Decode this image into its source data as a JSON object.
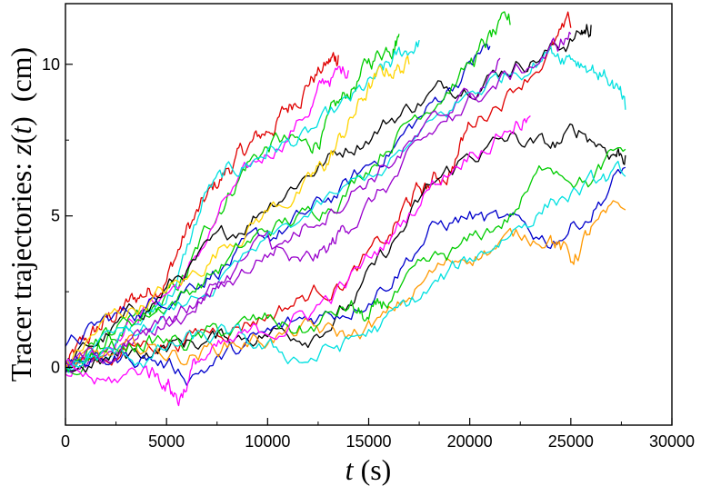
{
  "chart_data": {
    "type": "line",
    "title": "",
    "xlabel": {
      "var": "t",
      "unit": " (s)"
    },
    "ylabel": {
      "prefix": "Tracer trajectories: ",
      "var": "z",
      "paren_open": "(",
      "arg": "t",
      "paren_close": ")",
      "unit": "  (cm)"
    },
    "xlim": [
      0,
      30000
    ],
    "ylim": [
      -1.9,
      12
    ],
    "xticks": [
      0,
      5000,
      10000,
      15000,
      20000,
      25000,
      30000
    ],
    "xtick_labels": [
      "0",
      "5000",
      "10000",
      "15000",
      "20000",
      "25000",
      "30000"
    ],
    "yticks": [
      0,
      5,
      10
    ],
    "ytick_labels": [
      "0",
      "5",
      "10"
    ],
    "grid": false,
    "legend": "none",
    "note": "approximate",
    "series": [
      {
        "color": "#e00000",
        "x": [
          0,
          1000,
          2000,
          3000,
          4000,
          5000,
          6000,
          7000,
          8000,
          9000,
          10000,
          11000,
          12000,
          13000,
          13500
        ],
        "y": [
          0,
          0.8,
          1.5,
          2.0,
          2.5,
          3.0,
          4.5,
          5.5,
          6.5,
          7.2,
          7.8,
          8.5,
          9.5,
          10.0,
          10.3
        ]
      },
      {
        "color": "#00cc00",
        "x": [
          0,
          1500,
          3000,
          4500,
          6000,
          7500,
          9000,
          10500,
          12000,
          13000,
          14000,
          15000,
          16000,
          16500
        ],
        "y": [
          0,
          0.6,
          1.2,
          1.8,
          3.0,
          5.2,
          6.8,
          7.5,
          7.2,
          8.0,
          9.0,
          10.0,
          10.7,
          11.0
        ]
      },
      {
        "color": "#ff00ff",
        "x": [
          0,
          2000,
          4000,
          6000,
          8000,
          10000,
          12000,
          13000,
          14000
        ],
        "y": [
          0,
          0.9,
          2.0,
          3.0,
          5.5,
          7.0,
          8.5,
          9.5,
          9.8
        ]
      },
      {
        "color": "#00e0e0",
        "x": [
          0,
          2000,
          4000,
          5500,
          7000,
          8500,
          10000,
          12000,
          14000,
          15500,
          16500,
          17500
        ],
        "y": [
          0,
          0.8,
          1.6,
          2.8,
          5.8,
          6.5,
          7.2,
          7.6,
          8.6,
          9.5,
          10.2,
          10.8
        ]
      },
      {
        "color": "#000000",
        "x": [
          0,
          2000,
          4000,
          6000,
          8000,
          10000,
          12000,
          14000,
          16000,
          18000,
          20000,
          22000,
          24000,
          25500,
          26000
        ],
        "y": [
          0,
          1.0,
          2.0,
          3.2,
          4.2,
          5.5,
          6.5,
          7.3,
          8.2,
          9.0,
          9.5,
          10.0,
          10.5,
          11.0,
          11.3
        ]
      },
      {
        "color": "#0000cc",
        "x": [
          0,
          2000,
          4000,
          6000,
          8000,
          10000,
          12000,
          14000,
          16000,
          18000,
          20000,
          21000
        ],
        "y": [
          0.5,
          1.5,
          2.0,
          2.8,
          3.5,
          4.2,
          5.0,
          6.0,
          7.2,
          8.5,
          10.0,
          10.6
        ]
      },
      {
        "color": "#ffd400",
        "x": [
          0,
          2000,
          4000,
          6000,
          8000,
          10000,
          12000,
          13000,
          14000,
          15000,
          16000,
          17000
        ],
        "y": [
          0,
          1.5,
          2.2,
          2.8,
          4.2,
          5.2,
          6.0,
          6.8,
          8.0,
          9.2,
          9.8,
          10.0
        ]
      },
      {
        "color": "#00cc00",
        "x": [
          0,
          2000,
          4000,
          6000,
          8000,
          10000,
          12000,
          14000,
          16000,
          18000,
          20000,
          21000,
          22000
        ],
        "y": [
          0,
          1.2,
          1.8,
          2.5,
          3.5,
          4.5,
          5.0,
          6.0,
          7.5,
          8.8,
          10.0,
          10.8,
          11.3
        ]
      },
      {
        "color": "#9900cc",
        "x": [
          0,
          2000,
          4000,
          6000,
          8000,
          10000,
          11500,
          13000,
          14000,
          16000,
          18000,
          20000,
          21500
        ],
        "y": [
          0,
          0.6,
          1.2,
          1.8,
          3.0,
          4.2,
          3.2,
          3.8,
          4.8,
          6.0,
          7.5,
          9.0,
          10.2
        ]
      },
      {
        "color": "#e00000",
        "x": [
          0,
          2000,
          4000,
          6000,
          8000,
          10000,
          12000,
          14000,
          16000,
          17000,
          18000,
          19000,
          20000,
          22000,
          24000,
          25000
        ],
        "y": [
          0,
          0.4,
          0.8,
          1.0,
          1.4,
          1.8,
          2.4,
          3.0,
          4.2,
          5.5,
          6.0,
          6.5,
          8.0,
          9.2,
          10.5,
          11.2
        ]
      },
      {
        "color": "#000000",
        "x": [
          0,
          2000,
          4000,
          6000,
          8000,
          10000,
          12000,
          14000,
          16000,
          18000,
          20000,
          22000,
          24000,
          25500,
          27000,
          27700
        ],
        "y": [
          0,
          0.2,
          0.6,
          0.8,
          1.0,
          1.2,
          1.2,
          2.0,
          3.8,
          5.8,
          7.0,
          7.5,
          7.2,
          7.8,
          7.2,
          7.0
        ]
      },
      {
        "color": "#0000cc",
        "x": [
          0,
          2000,
          4000,
          6000,
          8000,
          10000,
          12000,
          14000,
          16000,
          18000,
          20000,
          22000,
          24000,
          26000,
          27700
        ],
        "y": [
          0,
          0.2,
          0.4,
          -0.2,
          0.4,
          1.0,
          1.6,
          2.0,
          3.0,
          4.5,
          5.0,
          4.6,
          4.2,
          5.2,
          6.6
        ]
      },
      {
        "color": "#ff9900",
        "x": [
          0,
          2000,
          4000,
          6000,
          8000,
          10000,
          12000,
          14000,
          16000,
          18000,
          20000,
          22000,
          24000,
          25000,
          26000,
          27700
        ],
        "y": [
          0,
          0.3,
          0.6,
          0.4,
          0.8,
          1.0,
          1.2,
          1.0,
          1.6,
          3.0,
          3.8,
          4.2,
          4.5,
          3.5,
          4.5,
          5.2
        ]
      },
      {
        "color": "#00cc00",
        "x": [
          0,
          2000,
          4000,
          6000,
          8000,
          10000,
          12000,
          14000,
          15000,
          16000,
          18000,
          20000,
          22000,
          24000,
          26000,
          27700
        ],
        "y": [
          0,
          0.5,
          0.9,
          0.8,
          1.2,
          1.5,
          1.2,
          2.0,
          1.5,
          2.2,
          3.2,
          4.0,
          5.0,
          6.8,
          6.2,
          7.2
        ]
      },
      {
        "color": "#00e0e0",
        "x": [
          0,
          2000,
          4000,
          6000,
          8000,
          10000,
          12000,
          14000,
          16000,
          18000,
          20000,
          22000,
          24000,
          26000,
          27700
        ],
        "y": [
          0,
          0.4,
          0.3,
          0.8,
          1.0,
          0.5,
          0.3,
          0.8,
          1.5,
          2.5,
          3.5,
          4.5,
          5.5,
          6.0,
          6.3
        ]
      },
      {
        "color": "#00e0e0",
        "x": [
          0,
          3000,
          6000,
          9000,
          12000,
          15000,
          18000,
          20000,
          22000,
          24000,
          25000,
          26000,
          27000,
          27700
        ],
        "y": [
          0,
          1.0,
          2.0,
          3.5,
          5.0,
          6.2,
          7.8,
          9.0,
          9.8,
          10.5,
          10.4,
          10.0,
          9.5,
          8.5
        ]
      },
      {
        "color": "#ff00ff",
        "x": [
          0,
          2000,
          4000,
          5000,
          5600,
          6500,
          8000,
          10000,
          12000,
          14000,
          16000,
          18000,
          20000,
          22000,
          23000
        ],
        "y": [
          0,
          -0.6,
          0,
          -0.4,
          -1.0,
          0.2,
          0.6,
          1.2,
          1.8,
          2.8,
          4.2,
          6.0,
          7.2,
          8.0,
          8.3
        ]
      },
      {
        "color": "#9900cc",
        "x": [
          0,
          2000,
          4000,
          6000,
          8000,
          10000,
          12000,
          14000,
          16000,
          18000,
          20000,
          22000,
          24000,
          25000
        ],
        "y": [
          0,
          0.5,
          1.0,
          1.8,
          2.8,
          3.8,
          4.8,
          5.8,
          6.8,
          7.8,
          8.8,
          9.6,
          10.4,
          11.0
        ]
      }
    ]
  }
}
